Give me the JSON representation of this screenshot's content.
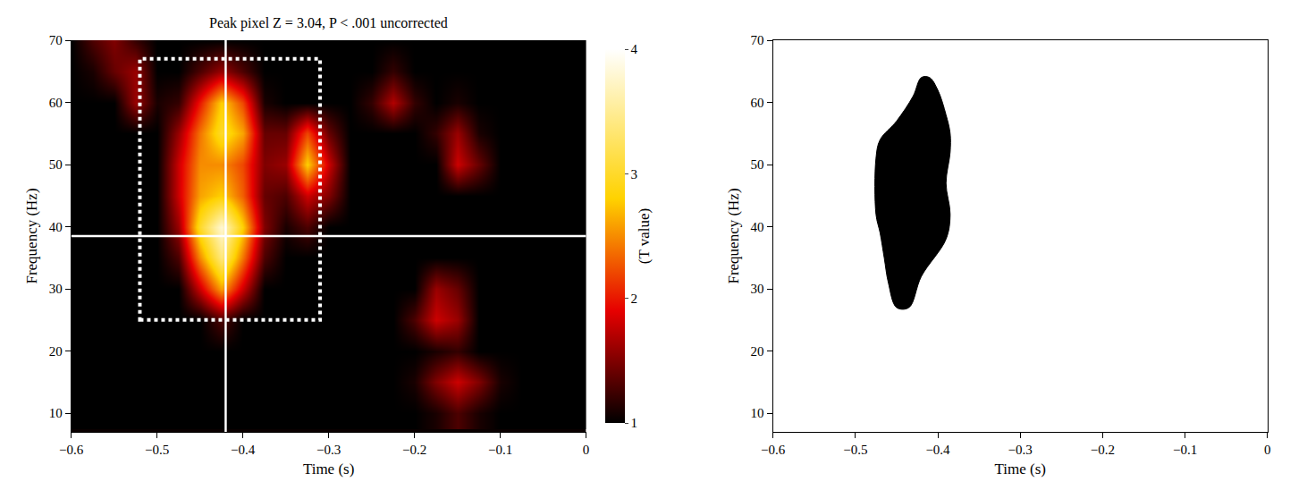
{
  "chart_data": [
    {
      "type": "heatmap",
      "title": "Peak pixel Z = 3.04, P < .001 uncorrected",
      "x_label": "Time (s)",
      "y_label": "Frequency (Hz)",
      "x": [
        -0.6,
        -0.575,
        -0.55,
        -0.525,
        -0.5,
        -0.475,
        -0.45,
        -0.425,
        -0.4,
        -0.375,
        -0.35,
        -0.325,
        -0.3,
        -0.275,
        -0.25,
        -0.225,
        -0.2,
        -0.175,
        -0.15,
        -0.125,
        -0.1,
        -0.075,
        -0.05,
        -0.025,
        0
      ],
      "y": [
        10,
        15,
        20,
        25,
        30,
        35,
        40,
        45,
        50,
        55,
        60,
        65,
        70
      ],
      "z": [
        [
          1,
          1,
          1,
          1,
          1,
          1,
          1,
          1,
          1,
          1,
          1,
          1,
          1,
          1,
          1,
          1,
          1,
          1.1,
          1.3,
          1.1,
          1,
          1,
          1,
          1,
          1
        ],
        [
          1,
          1,
          1,
          1,
          1,
          1,
          1,
          1,
          1,
          1,
          1,
          1,
          1,
          1,
          1,
          1,
          1.1,
          1.5,
          1.8,
          1.5,
          1.1,
          1,
          1,
          1,
          1
        ],
        [
          1,
          1,
          1,
          1,
          1,
          1,
          1,
          1,
          1,
          1,
          1,
          1,
          1,
          1,
          1,
          1,
          1,
          1.1,
          1.2,
          1,
          1,
          1,
          1,
          1,
          1
        ],
        [
          1,
          1,
          1,
          1,
          1,
          1,
          1,
          1.3,
          1,
          1,
          1,
          1,
          1,
          1,
          1,
          1,
          1.3,
          1.8,
          1.6,
          1,
          1,
          1,
          1,
          1,
          1
        ],
        [
          1,
          1,
          1,
          1,
          1,
          1,
          1.8,
          2.6,
          1.8,
          1,
          1,
          1,
          1,
          1,
          1,
          1,
          1,
          1.6,
          1.4,
          1,
          1,
          1,
          1,
          1,
          1
        ],
        [
          1,
          1,
          1,
          1,
          1,
          1.3,
          2.5,
          3.4,
          2.4,
          1.3,
          1,
          1,
          1,
          1,
          1,
          1,
          1,
          1,
          1,
          1,
          1,
          1,
          1,
          1,
          1
        ],
        [
          1,
          1,
          1,
          1,
          1,
          1.6,
          3.0,
          3.8,
          2.8,
          1.5,
          1.1,
          1.3,
          1,
          1,
          1,
          1,
          1,
          1,
          1,
          1,
          1,
          1,
          1,
          1,
          1
        ],
        [
          1,
          1,
          1,
          1,
          1,
          1.8,
          2.6,
          2.8,
          2.3,
          1.4,
          1.3,
          1.8,
          1.5,
          1,
          1,
          1,
          1,
          1,
          1,
          1,
          1,
          1,
          1,
          1,
          1
        ],
        [
          1,
          1,
          1,
          1,
          1,
          1.8,
          2.5,
          2.5,
          2.2,
          1.5,
          1.6,
          2.8,
          1.8,
          1,
          1,
          1,
          1,
          1,
          1.8,
          1.4,
          1,
          1,
          1,
          1,
          1
        ],
        [
          1,
          1,
          1,
          1,
          1,
          1.6,
          2.4,
          3.0,
          2.6,
          1.4,
          1.4,
          2.2,
          1.4,
          1,
          1,
          1,
          1,
          1.2,
          1.6,
          1.1,
          1,
          1,
          1,
          1,
          1
        ],
        [
          1,
          1,
          1,
          1.6,
          1.1,
          1.2,
          2.0,
          2.8,
          2.2,
          1.1,
          1,
          1,
          1,
          1,
          1.2,
          1.7,
          1.2,
          1,
          1.1,
          1,
          1,
          1,
          1,
          1,
          1
        ],
        [
          1,
          1.1,
          1.4,
          1.6,
          1,
          1,
          1.3,
          1.6,
          1.3,
          1,
          1,
          1,
          1,
          1,
          1,
          1.2,
          1,
          1,
          1,
          1,
          1,
          1,
          1,
          1,
          1
        ],
        [
          1,
          1.3,
          1.5,
          1.2,
          1,
          1,
          1,
          1,
          1,
          1,
          1,
          1,
          1,
          1,
          1,
          1,
          1,
          1,
          1,
          1,
          1,
          1,
          1,
          1,
          1
        ]
      ],
      "colorbar": {
        "title": "(T value)",
        "range": [
          1,
          4
        ],
        "ticks": [
          1,
          2,
          3,
          4
        ]
      },
      "xlim": [
        -0.6,
        0
      ],
      "xticks": [
        -0.6,
        -0.5,
        -0.4,
        -0.3,
        -0.2,
        -0.1,
        0
      ],
      "ylim": [
        7,
        70
      ],
      "yticks": [
        10,
        20,
        30,
        40,
        50,
        60,
        70
      ],
      "roi": {
        "x0": -0.52,
        "x1": -0.31,
        "y0": 25,
        "y1": 67
      },
      "peak": {
        "x": -0.42,
        "y": 38.5
      }
    },
    {
      "type": "mask",
      "x_label": "Time (s)",
      "y_label": "Frequency (Hz)",
      "outline": {
        "x": [
          -0.45,
          -0.435,
          -0.42,
          -0.39,
          -0.385,
          -0.39,
          -0.385,
          -0.385,
          -0.39,
          -0.4,
          -0.41,
          -0.42,
          -0.43,
          -0.45,
          -0.47,
          -0.475,
          -0.475,
          -0.47,
          -0.465,
          -0.46,
          -0.45
        ],
        "y": [
          27,
          27,
          32,
          38,
          42,
          47,
          52,
          55,
          58,
          62,
          64,
          64,
          61,
          57,
          54,
          51,
          42,
          39,
          35,
          31,
          27
        ]
      },
      "color": "#000000",
      "xlim": [
        -0.6,
        0
      ],
      "xticks": [
        -0.6,
        -0.5,
        -0.4,
        -0.3,
        -0.2,
        -0.1,
        0
      ],
      "ylim": [
        7,
        70
      ],
      "yticks": [
        10,
        20,
        30,
        40,
        50,
        60,
        70
      ]
    }
  ]
}
